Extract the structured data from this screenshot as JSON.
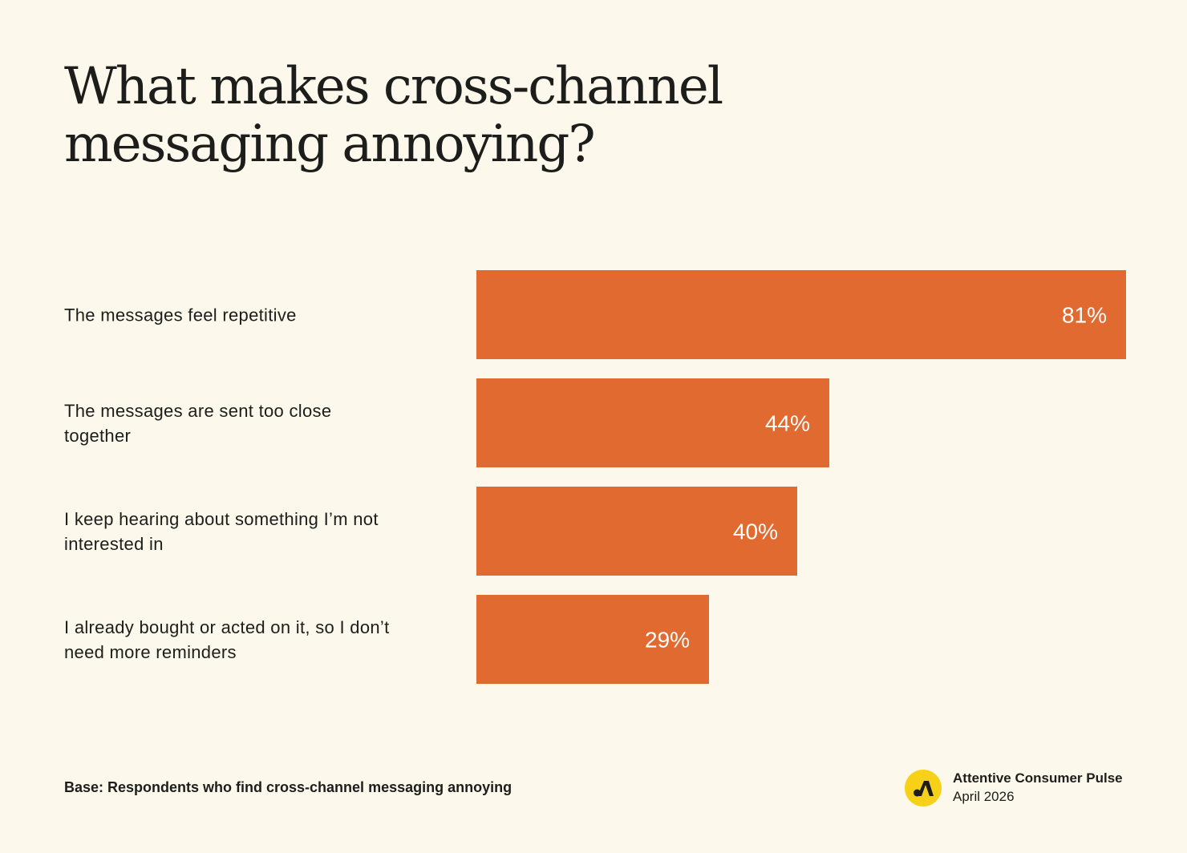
{
  "title": {
    "line1": "What makes cross-channel",
    "line2": "messaging annoying?"
  },
  "chart_data": {
    "type": "bar",
    "orientation": "horizontal",
    "categories": [
      [
        "The messages feel repetitive"
      ],
      [
        "The messages are sent too close",
        "together"
      ],
      [
        "I keep hearing about something I’m not",
        "interested in"
      ],
      [
        "I already bought or acted on it, so I don’t",
        "need more reminders"
      ]
    ],
    "values": [
      81,
      44,
      40,
      29
    ],
    "value_labels": [
      "81%",
      "44%",
      "40%",
      "29%"
    ],
    "unit": "%",
    "xlim": [
      0,
      100
    ],
    "grid": false,
    "bar_color": "#e06a30"
  },
  "footnote": "Base: Respondents who find cross-channel messaging annoying",
  "brand": {
    "name": "Attentive Consumer Pulse",
    "date": "April 2026",
    "logo_icon": "attentive-a-logo-icon",
    "logo_color": "#f7d117"
  }
}
